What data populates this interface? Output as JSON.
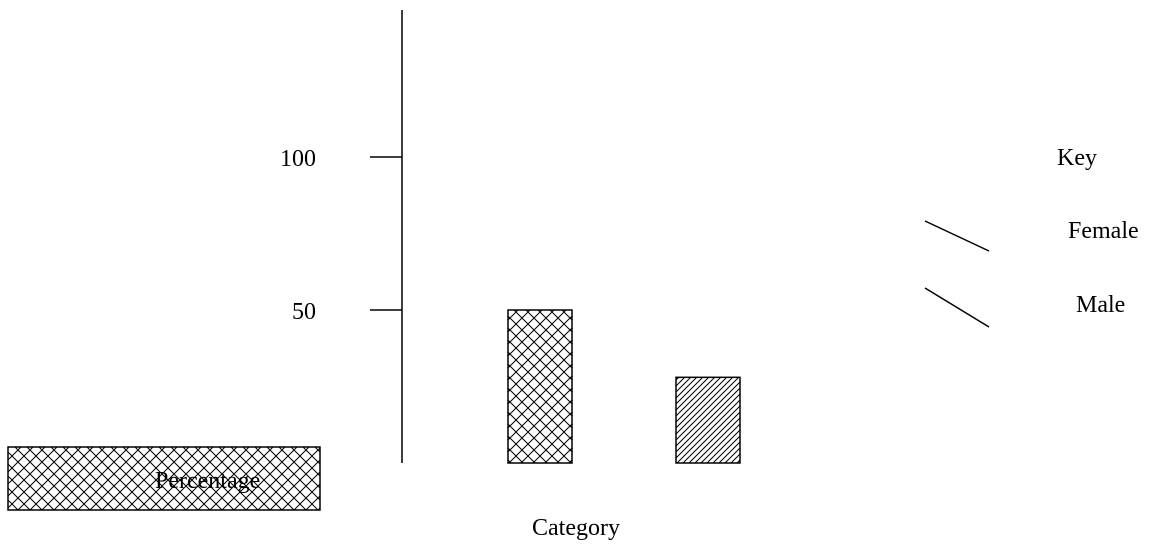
{
  "chart_data": {
    "type": "bar",
    "title": "",
    "xlabel": "Category",
    "ylabel": "Percentage",
    "ylim": [
      0,
      100
    ],
    "y_ticks": [
      {
        "value": 100,
        "label": "100"
      },
      {
        "value": 50,
        "label": "50"
      }
    ],
    "categories": [
      "",
      ""
    ],
    "series": [
      {
        "values": [
          50,
          null
        ],
        "pattern": "crosshatch"
      },
      {
        "values": [
          null,
          28
        ],
        "pattern": "diagonal"
      }
    ],
    "legend": {
      "title": "Key",
      "position": "right",
      "entries": [
        "Female",
        "Male"
      ]
    },
    "grid": false,
    "colors": {
      "ink": "#000000",
      "background": "#ffffff"
    }
  }
}
